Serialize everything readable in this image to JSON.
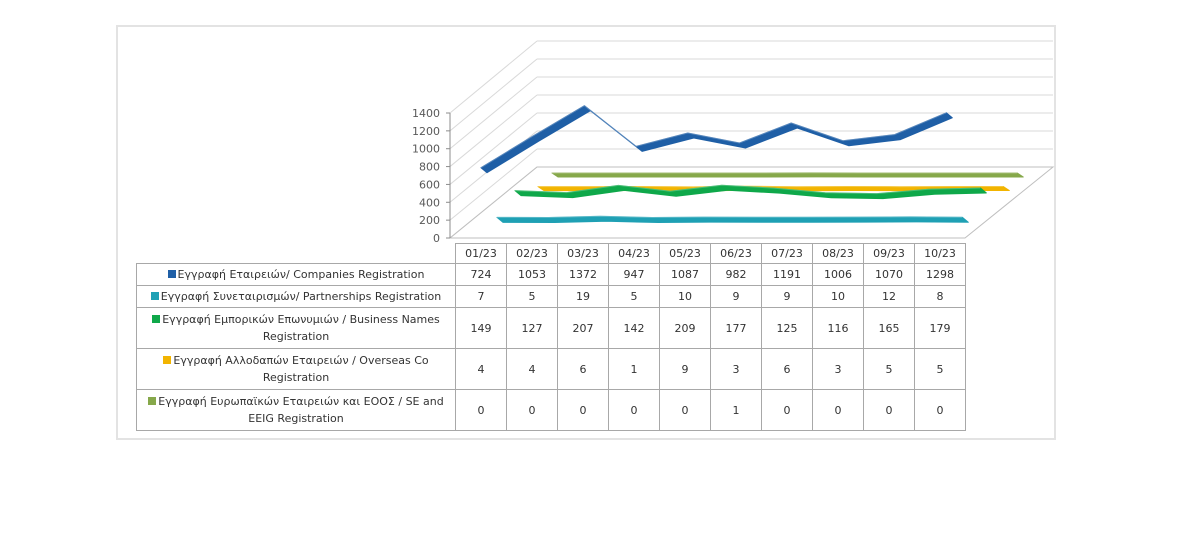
{
  "chart_data": {
    "type": "line",
    "style": "3d",
    "title": "",
    "xlabel": "",
    "ylabel": "",
    "ylim": [
      0,
      1400
    ],
    "yticks": [
      "0",
      "200",
      "400",
      "600",
      "800",
      "1000",
      "1200",
      "1400"
    ],
    "grid": true,
    "legend": "table-below",
    "categories": [
      "01/23",
      "02/23",
      "03/23",
      "04/23",
      "05/23",
      "06/23",
      "07/23",
      "08/23",
      "09/23",
      "10/23"
    ],
    "series": [
      {
        "name": "Εγγραφή  Εταιρειών/ Companies Registration",
        "color": "#1f5fa6",
        "values": [
          724,
          1053,
          1372,
          947,
          1087,
          982,
          1191,
          1006,
          1070,
          1298
        ]
      },
      {
        "name": "Εγγραφή  Συνεταιρισμών/ Partnerships Registration",
        "color": "#1fa0b4",
        "values": [
          7,
          5,
          19,
          5,
          10,
          9,
          9,
          10,
          12,
          8
        ]
      },
      {
        "name": "Εγγραφή  Εμπορικών Επωνυμιών / Business Names Registration",
        "color": "#0fa84a",
        "values": [
          149,
          127,
          207,
          142,
          209,
          177,
          125,
          116,
          165,
          179
        ]
      },
      {
        "name": "Εγγραφή  Αλλοδαπών Εταιρειών / Overseas Co Registration",
        "color": "#f2b400",
        "values": [
          4,
          4,
          6,
          1,
          9,
          3,
          6,
          3,
          5,
          5
        ]
      },
      {
        "name": "Εγγραφή  Ευρωπαϊκών Εταιρειών και ΕΟΟΣ / SE and EEIG Registration",
        "color": "#86a84a",
        "values": [
          0,
          0,
          0,
          0,
          0,
          1,
          0,
          0,
          0,
          0
        ]
      }
    ]
  }
}
